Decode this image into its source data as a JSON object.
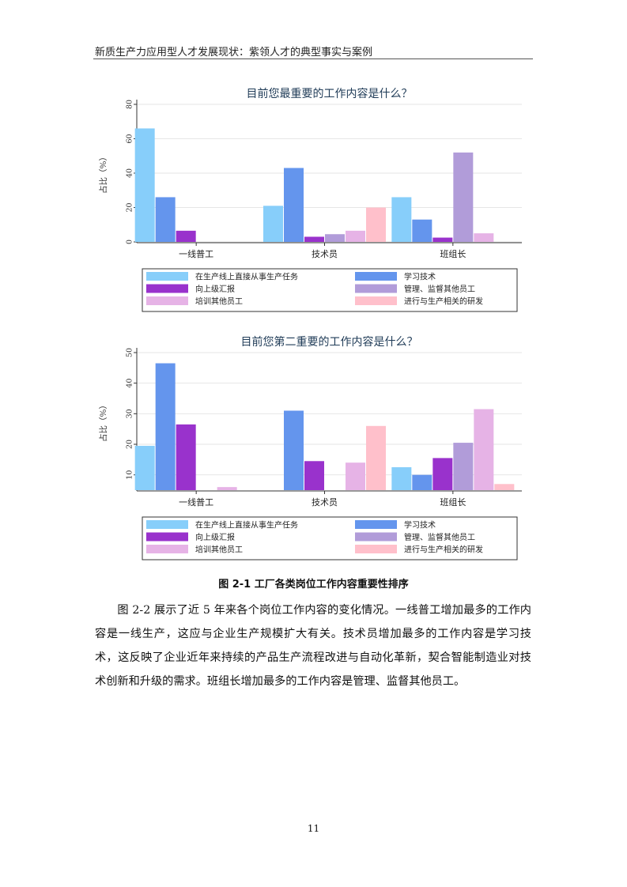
{
  "header": {
    "title": "新质生产力应用型人才发展现状：紫领人才的典型事实与案例"
  },
  "figure": {
    "caption": "图 2-1 工厂各类岗位工作内容重要性排序"
  },
  "body": {
    "paragraph": "图 2-2 展示了近 5 年来各个岗位工作内容的变化情况。一线普工增加最多的工作内容是一线生产，这应与企业生产规模扩大有关。技术员增加最多的工作内容是学习技术，这反映了企业近年来持续的产品生产流程改进与自动化革新，契合智能制造业对技术创新和升级的需求。班组长增加最多的工作内容是管理、监督其他员工。"
  },
  "page_number": "11",
  "colors": [
    "#87cefa",
    "#6495ed",
    "#9932cc",
    "#b19cd9",
    "#e6b3e6",
    "#ffc0cb"
  ],
  "chart_data": [
    {
      "type": "bar",
      "title": "目前您最重要的工作内容是什么？",
      "ylabel": "占比（%）",
      "xlabel": "",
      "ylim": [
        0,
        80
      ],
      "yticks": [
        0,
        20,
        40,
        60,
        80
      ],
      "categories": [
        "一线普工",
        "技术员",
        "班组长"
      ],
      "legend_position": "bottom",
      "series": [
        {
          "name": "在生产线上直接从事生产任务",
          "values": [
            66,
            21,
            26
          ]
        },
        {
          "name": "学习技术",
          "values": [
            26,
            43,
            13
          ]
        },
        {
          "name": "向上级汇报",
          "values": [
            6.5,
            3,
            2.5
          ]
        },
        {
          "name": "管理、监督其他员工",
          "values": [
            null,
            4.5,
            52
          ]
        },
        {
          "name": "培训其他员工",
          "values": [
            null,
            6.5,
            5
          ]
        },
        {
          "name": "进行与生产相关的研发",
          "values": [
            null,
            20,
            null
          ]
        }
      ]
    },
    {
      "type": "bar",
      "title": "目前您第二重要的工作内容是什么？",
      "ylabel": "占比（%）",
      "xlabel": "",
      "ylim": [
        5,
        50
      ],
      "yticks": [
        10,
        20,
        30,
        40,
        50
      ],
      "categories": [
        "一线普工",
        "技术员",
        "班组长"
      ],
      "legend_position": "bottom",
      "series": [
        {
          "name": "在生产线上直接从事生产任务",
          "values": [
            19.5,
            null,
            12.5
          ]
        },
        {
          "name": "学习技术",
          "values": [
            46.5,
            31,
            10
          ]
        },
        {
          "name": "向上级汇报",
          "values": [
            26.5,
            14.5,
            15.5
          ]
        },
        {
          "name": "管理、监督其他员工",
          "values": [
            null,
            null,
            20.5
          ]
        },
        {
          "name": "培训其他员工",
          "values": [
            6,
            14,
            31.5
          ]
        },
        {
          "name": "进行与生产相关的研发",
          "values": [
            null,
            26,
            7
          ]
        }
      ]
    }
  ]
}
